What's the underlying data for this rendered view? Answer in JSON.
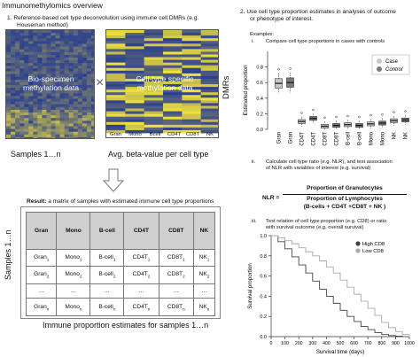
{
  "title": "Immunomethylomics overview",
  "step1": {
    "label": "1.  Reference-based cell type deconvolution using immune cell DMRs (e.g. Houseman method)",
    "line1": "1.  Reference-based cell type deconvolution using immune cell DMRs (e.g.",
    "line2": "Houseman method)",
    "left_heatmap_text": [
      "Bio-specimen",
      "methylation data"
    ],
    "right_heatmap_text": [
      "Cell-type specific",
      "methylation data"
    ],
    "times_symbol": "×",
    "dmrs_label": "DMRs",
    "celltype_labels": [
      "Gran",
      "Mono",
      "Bcell",
      "CD4T",
      "CD8T",
      "NK"
    ],
    "samples_caption": "Samples 1…n",
    "beta_caption": "Avg. beta-value per cell type"
  },
  "result": {
    "label_bold": "Result:",
    "label_rest": " a matrix of samples with estimated immune cell type proportions",
    "headers": [
      "Gran",
      "Mono",
      "B-cell",
      "CD4T",
      "CD8T",
      "NK"
    ],
    "rows": [
      [
        {
          "b": "Gran",
          "s": "1"
        },
        {
          "b": "Mono",
          "s": "1"
        },
        {
          "b": "B-cell",
          "s": "1"
        },
        {
          "b": "CD4T",
          "s": "1"
        },
        {
          "b": "CD8T",
          "s": "1"
        },
        {
          "b": "NK",
          "s": "1"
        }
      ],
      [
        {
          "b": "Gran",
          "s": "2"
        },
        {
          "b": "Mono",
          "s": "2"
        },
        {
          "b": "B-cell",
          "s": "2"
        },
        {
          "b": "CD4T",
          "s": "2"
        },
        {
          "b": "CD8T",
          "s": "2"
        },
        {
          "b": "NK",
          "s": "2"
        }
      ],
      [
        {
          "b": "...",
          "s": ""
        },
        {
          "b": "...",
          "s": ""
        },
        {
          "b": "...",
          "s": ""
        },
        {
          "b": "...",
          "s": ""
        },
        {
          "b": "...",
          "s": ""
        },
        {
          "b": "...",
          "s": ""
        }
      ],
      [
        {
          "b": "Gran",
          "s": "n"
        },
        {
          "b": "Mono",
          "s": "n"
        },
        {
          "b": "B-cell",
          "s": "n"
        },
        {
          "b": "CD4T",
          "s": "n"
        },
        {
          "b": "CD8T",
          "s": "n"
        },
        {
          "b": "NK",
          "s": "n"
        }
      ]
    ],
    "samples_label": "Samples 1…n",
    "caption": "Immune proportion estimates for samples 1…n"
  },
  "step2": {
    "line1": "2.  Use cell type proportion estimates in analyses of outcome",
    "line2": "or phenotype of interest.",
    "examples": "Examples:",
    "i_num": "i.",
    "i_text": "Compare cell type proportions in cases with controls",
    "ii_num": "ii.",
    "ii_line1": "Calculate cell type ratio (e.g. NLR), and test association",
    "ii_line2": "of  NLR with variables of interest (e.g. survival)",
    "nlr_lhs": "NLR =",
    "nlr_num": "Proportion of Granulocytes",
    "nlr_den1": "Proportion of Lymphocytes",
    "nlr_den2": "(B-cells + CD4T +CD8T + NK )",
    "iii_num": "iii.",
    "iii_line1": "Test relation of cell type proportion (e.g. CD8) or ratio",
    "iii_line2": "with survival outcome (e.g. overall survival)"
  },
  "colors": {
    "case": "#c8c8c8",
    "control": "#7a7a7a",
    "high_cd8": "#444444",
    "low_cd8": "#aaaaaa",
    "heat_blue": "#2b3f8f",
    "heat_yellow": "#f2e23a"
  },
  "chart_data": [
    {
      "type": "box",
      "ylabel": "Estimated proportion",
      "ylim": [
        0,
        1
      ],
      "yticks": [
        "0.0",
        "0.2",
        "0.4",
        "0.6",
        "0.8"
      ],
      "categories": [
        "Gran",
        "Gran",
        "CD4T",
        "CD4T",
        "CD8T",
        "CD8T",
        "B-cell",
        "B-cell",
        "Mono",
        "Mono",
        "NK",
        "NK"
      ],
      "series": [
        {
          "name": "Case",
          "medians": [
            0.59,
            0.1,
            0.04,
            0.06,
            0.07,
            0.11
          ]
        },
        {
          "name": "Control",
          "medians": [
            0.6,
            0.14,
            0.05,
            0.05,
            0.08,
            0.12
          ]
        }
      ],
      "legend": "top-right"
    },
    {
      "type": "line",
      "xlabel": "Survival time (days)",
      "ylabel": "Survival proportion",
      "xlim": [
        0,
        1000
      ],
      "ylim": [
        0,
        1
      ],
      "xticks": [
        "0",
        "100",
        "200",
        "300",
        "400",
        "500",
        "600",
        "700",
        "800",
        "900",
        "1000"
      ],
      "yticks": [
        "0.0",
        "0.2",
        "0.4",
        "0.6",
        "0.8",
        "1.0"
      ],
      "series": [
        {
          "name": "High CD8",
          "x": [
            0,
            50,
            100,
            150,
            200,
            250,
            300,
            350,
            400,
            450,
            500,
            550,
            600,
            650,
            700,
            750,
            800,
            850,
            900,
            950
          ],
          "y": [
            1.0,
            0.94,
            0.87,
            0.79,
            0.71,
            0.63,
            0.55,
            0.47,
            0.4,
            0.33,
            0.26,
            0.2,
            0.15,
            0.1,
            0.07,
            0.04,
            0.02,
            0.01,
            0.005,
            0.0
          ]
        },
        {
          "name": "Low CD8",
          "x": [
            0,
            50,
            100,
            150,
            200,
            250,
            300,
            350,
            400,
            450,
            500,
            550,
            600,
            650,
            700,
            750,
            800,
            850,
            900,
            950,
            1000
          ],
          "y": [
            1.0,
            0.98,
            0.95,
            0.92,
            0.88,
            0.84,
            0.8,
            0.75,
            0.69,
            0.63,
            0.56,
            0.49,
            0.42,
            0.35,
            0.28,
            0.21,
            0.14,
            0.09,
            0.05,
            0.02,
            0.01
          ]
        }
      ],
      "legend": "top-right"
    }
  ]
}
